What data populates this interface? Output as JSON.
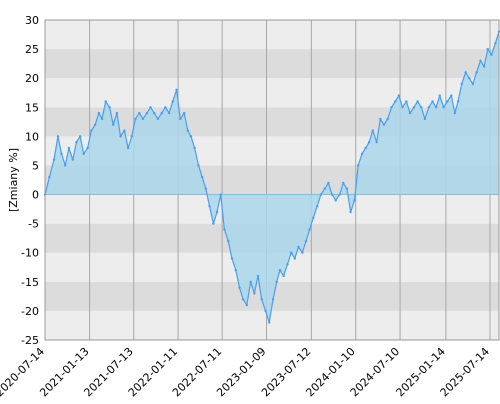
{
  "chart_data": {
    "type": "area",
    "ylabel": "[Zmiany %]",
    "xlabel": "",
    "title": "",
    "ylim": [
      -25,
      30
    ],
    "yticks": [
      -25,
      -20,
      -15,
      -10,
      -5,
      0,
      5,
      10,
      15,
      20,
      25,
      30
    ],
    "xlim": [
      "2020-07-14",
      "2025-08-20"
    ],
    "xticks": [
      "2020-07-14",
      "2021-01-13",
      "2021-07-13",
      "2022-01-11",
      "2022-07-11",
      "2023-01-09",
      "2023-07-12",
      "2024-01-10",
      "2024-07-10",
      "2025-01-14",
      "2025-07-14"
    ],
    "grid": true,
    "legend": "none",
    "colors": {
      "line": "#4a9eee",
      "fill": "#a9d6ea",
      "band_light": "#ededed",
      "band_dark": "#dcdcdc",
      "vgrid": "#a8a8a8",
      "baseline": "#7ec0e4"
    },
    "series": [
      {
        "x": [
          "2020-07-14",
          "2020-08-01",
          "2020-08-20",
          "2020-09-05",
          "2020-09-20",
          "2020-10-05",
          "2020-10-20",
          "2020-11-05",
          "2020-11-20",
          "2020-12-05",
          "2020-12-20",
          "2021-01-05",
          "2021-01-20",
          "2021-02-05",
          "2021-02-20",
          "2021-03-05",
          "2021-03-20",
          "2021-04-05",
          "2021-04-20",
          "2021-05-05",
          "2021-05-20",
          "2021-06-05",
          "2021-06-20",
          "2021-07-05",
          "2021-07-20",
          "2021-08-05",
          "2021-08-20",
          "2021-09-05",
          "2021-09-20",
          "2021-10-05",
          "2021-10-20",
          "2021-11-05",
          "2021-11-20",
          "2021-12-05",
          "2021-12-20",
          "2022-01-05",
          "2022-01-20",
          "2022-02-05",
          "2022-02-20",
          "2022-03-05",
          "2022-03-20",
          "2022-04-05",
          "2022-04-20",
          "2022-05-05",
          "2022-05-20",
          "2022-06-05",
          "2022-06-20",
          "2022-07-05",
          "2022-07-20",
          "2022-08-05",
          "2022-08-20",
          "2022-09-05",
          "2022-09-20",
          "2022-10-05",
          "2022-10-20",
          "2022-11-05",
          "2022-11-20",
          "2022-12-05",
          "2022-12-20",
          "2023-01-05",
          "2023-01-20",
          "2023-02-05",
          "2023-02-20",
          "2023-03-05",
          "2023-03-20",
          "2023-04-05",
          "2023-04-20",
          "2023-05-05",
          "2023-05-20",
          "2023-06-05",
          "2023-06-20",
          "2023-07-05",
          "2023-07-20",
          "2023-08-05",
          "2023-08-20",
          "2023-09-05",
          "2023-09-20",
          "2023-10-05",
          "2023-10-20",
          "2023-11-05",
          "2023-11-20",
          "2023-12-05",
          "2023-12-20",
          "2024-01-05",
          "2024-01-20",
          "2024-02-05",
          "2024-02-20",
          "2024-03-05",
          "2024-03-20",
          "2024-04-05",
          "2024-04-20",
          "2024-05-05",
          "2024-05-20",
          "2024-06-05",
          "2024-06-20",
          "2024-07-05",
          "2024-07-20",
          "2024-08-05",
          "2024-08-20",
          "2024-09-05",
          "2024-09-20",
          "2024-10-05",
          "2024-10-20",
          "2024-11-05",
          "2024-11-20",
          "2024-12-05",
          "2024-12-20",
          "2025-01-05",
          "2025-01-20",
          "2025-02-05",
          "2025-02-20",
          "2025-03-05",
          "2025-03-20",
          "2025-04-05",
          "2025-04-20",
          "2025-05-05",
          "2025-05-20",
          "2025-06-05",
          "2025-06-20",
          "2025-07-05",
          "2025-07-20",
          "2025-08-05",
          "2025-08-20"
        ],
        "y": [
          0,
          3,
          6,
          10,
          7,
          5,
          8,
          6,
          9,
          10,
          7,
          8,
          11,
          12,
          14,
          13,
          16,
          15,
          12,
          14,
          10,
          11,
          8,
          10,
          13,
          14,
          13,
          14,
          15,
          14,
          13,
          14,
          15,
          14,
          16,
          18,
          13,
          14,
          11,
          10,
          8,
          5,
          3,
          1,
          -2,
          -5,
          -3,
          0,
          -6,
          -8,
          -11,
          -13,
          -16,
          -18,
          -19,
          -15,
          -17,
          -14,
          -18,
          -20,
          -22,
          -18,
          -15,
          -13,
          -14,
          -12,
          -10,
          -11,
          -9,
          -10,
          -8,
          -6,
          -4,
          -2,
          0,
          1,
          2,
          0,
          -1,
          0,
          2,
          1,
          -3,
          -1,
          5,
          7,
          8,
          9,
          11,
          9,
          13,
          12,
          13,
          15,
          16,
          17,
          15,
          16,
          14,
          15,
          16,
          15,
          13,
          15,
          16,
          15,
          17,
          15,
          16,
          17,
          14,
          16,
          19,
          21,
          20,
          19,
          21,
          23,
          22,
          25,
          24,
          26,
          28
        ]
      }
    ]
  }
}
